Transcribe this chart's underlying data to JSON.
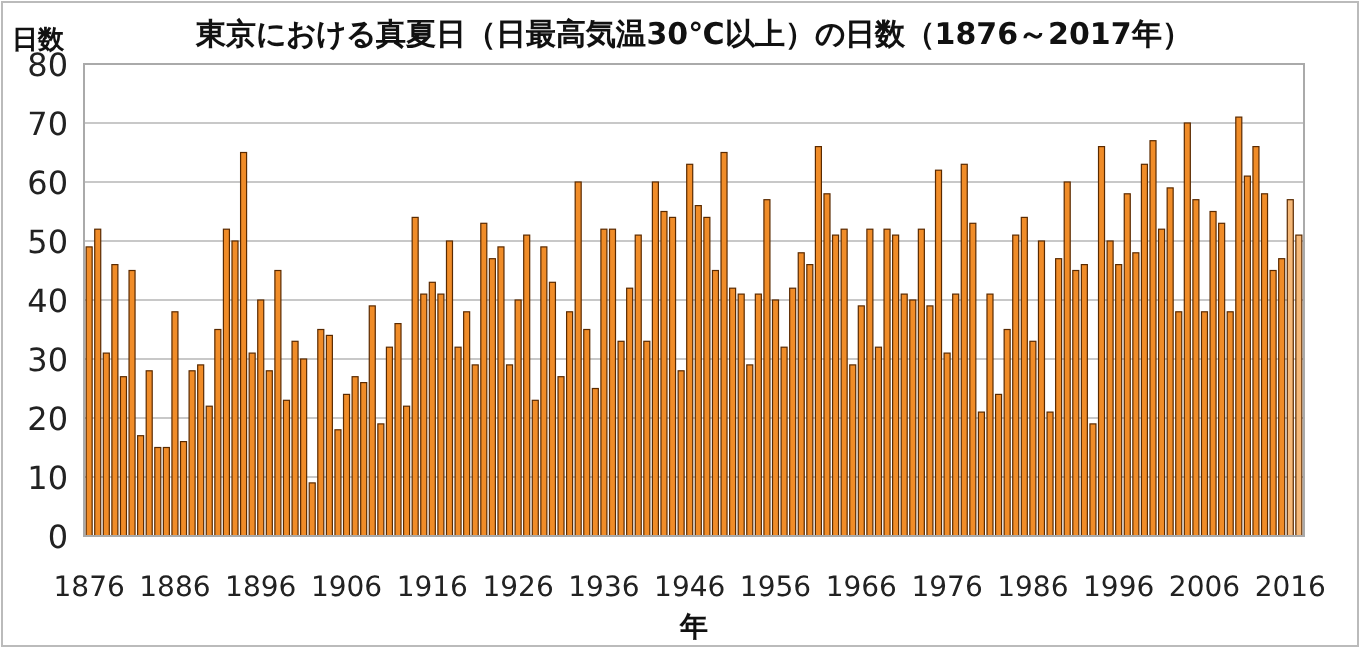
{
  "chart_data": {
    "type": "bar",
    "title": "東京における真夏日（日最高気温30℃以上）の日数（1876～2017年）",
    "xlabel": "年",
    "ylabel": "日数",
    "x": [
      1876,
      1877,
      1878,
      1879,
      1880,
      1881,
      1882,
      1883,
      1884,
      1885,
      1886,
      1887,
      1888,
      1889,
      1890,
      1891,
      1892,
      1893,
      1894,
      1895,
      1896,
      1897,
      1898,
      1899,
      1900,
      1901,
      1902,
      1903,
      1904,
      1905,
      1906,
      1907,
      1908,
      1909,
      1910,
      1911,
      1912,
      1913,
      1914,
      1915,
      1916,
      1917,
      1918,
      1919,
      1920,
      1921,
      1922,
      1923,
      1924,
      1925,
      1926,
      1927,
      1928,
      1929,
      1930,
      1931,
      1932,
      1933,
      1934,
      1935,
      1936,
      1937,
      1938,
      1939,
      1940,
      1941,
      1942,
      1943,
      1944,
      1945,
      1946,
      1947,
      1948,
      1949,
      1950,
      1951,
      1952,
      1953,
      1954,
      1955,
      1956,
      1957,
      1958,
      1959,
      1960,
      1961,
      1962,
      1963,
      1964,
      1965,
      1966,
      1967,
      1968,
      1969,
      1970,
      1971,
      1972,
      1973,
      1974,
      1975,
      1976,
      1977,
      1978,
      1979,
      1980,
      1981,
      1982,
      1983,
      1984,
      1985,
      1986,
      1987,
      1988,
      1989,
      1990,
      1991,
      1992,
      1993,
      1994,
      1995,
      1996,
      1997,
      1998,
      1999,
      2000,
      2001,
      2002,
      2003,
      2004,
      2005,
      2006,
      2007,
      2008,
      2009,
      2010,
      2011,
      2012,
      2013,
      2014,
      2015,
      2016,
      2017
    ],
    "values": [
      49,
      52,
      31,
      46,
      27,
      45,
      17,
      28,
      15,
      15,
      38,
      16,
      28,
      29,
      22,
      35,
      52,
      50,
      65,
      31,
      40,
      28,
      45,
      23,
      33,
      30,
      9,
      35,
      34,
      18,
      24,
      27,
      26,
      39,
      19,
      32,
      36,
      22,
      54,
      41,
      43,
      41,
      50,
      32,
      38,
      29,
      53,
      47,
      49,
      29,
      40,
      51,
      23,
      49,
      43,
      27,
      38,
      60,
      35,
      25,
      52,
      52,
      33,
      42,
      51,
      33,
      60,
      55,
      54,
      28,
      63,
      56,
      54,
      45,
      65,
      42,
      41,
      29,
      41,
      57,
      40,
      32,
      42,
      48,
      46,
      66,
      58,
      51,
      52,
      29,
      39,
      52,
      32,
      52,
      51,
      41,
      40,
      52,
      39,
      62,
      31,
      41,
      63,
      53,
      21,
      41,
      24,
      35,
      51,
      54,
      33,
      50,
      21,
      47,
      60,
      45,
      46,
      19,
      66,
      50,
      46,
      58,
      48,
      63,
      67,
      52,
      59,
      38,
      70,
      57,
      38,
      55,
      53,
      38,
      71,
      61,
      66,
      58,
      45,
      47,
      57,
      51
    ],
    "colors": [
      "#f08c28",
      "#f08c28",
      "#f08c28",
      "#f08c28",
      "#f08c28",
      "#f08c28",
      "#f08c28",
      "#f08c28",
      "#f08c28",
      "#f08c28",
      "#f08c28",
      "#f08c28",
      "#f08c28",
      "#f08c28",
      "#f08c28",
      "#f08c28",
      "#f08c28",
      "#f08c28",
      "#f08c28",
      "#f08c28",
      "#f08c28",
      "#f08c28",
      "#f08c28",
      "#f08c28",
      "#f08c28",
      "#f08c28",
      "#f08c28",
      "#f08c28",
      "#f08c28",
      "#f08c28",
      "#f08c28",
      "#f08c28",
      "#f08c28",
      "#f08c28",
      "#f08c28",
      "#f08c28",
      "#f08c28",
      "#f08c28",
      "#f08c28",
      "#f08c28",
      "#f08c28",
      "#f08c28",
      "#f08c28",
      "#f08c28",
      "#f08c28",
      "#f08c28",
      "#f08c28",
      "#f08c28",
      "#f08c28",
      "#f08c28",
      "#f08c28",
      "#f08c28",
      "#f08c28",
      "#f08c28",
      "#f08c28",
      "#f08c28",
      "#f08c28",
      "#f08c28",
      "#f08c28",
      "#f08c28",
      "#f08c28",
      "#f08c28",
      "#f08c28",
      "#f08c28",
      "#f08c28",
      "#f08c28",
      "#f08c28",
      "#f08c28",
      "#f08c28",
      "#f08c28",
      "#f08c28",
      "#f08c28",
      "#f08c28",
      "#f08c28",
      "#f08c28",
      "#f08c28",
      "#f08c28",
      "#f08c28",
      "#f08c28",
      "#f08c28",
      "#f08c28",
      "#f08c28",
      "#f08c28",
      "#f08c28",
      "#f08c28",
      "#f08c28",
      "#f08c28",
      "#f08c28",
      "#f08c28",
      "#f08c28",
      "#f08c28",
      "#f08c28",
      "#f08c28",
      "#f08c28",
      "#f08c28",
      "#f08c28",
      "#f08c28",
      "#f08c28",
      "#f08c28",
      "#f08c28",
      "#f08c28",
      "#f08c28",
      "#f08c28",
      "#f08c28",
      "#f08c28",
      "#f08c28",
      "#f08c28",
      "#f08c28",
      "#f08c28",
      "#f08c28",
      "#f08c28",
      "#f08c28",
      "#f08c28",
      "#f08c28",
      "#f08c28",
      "#f08c28",
      "#f08c28",
      "#f08c28",
      "#f08c28",
      "#f08c28",
      "#f08c28",
      "#f08c28",
      "#f08c28",
      "#f08c28",
      "#f08c28",
      "#f08c28",
      "#f08c28",
      "#f08c28",
      "#f08c28",
      "#f08c28",
      "#f08c28",
      "#f08c28",
      "#f08c28",
      "#f08c28",
      "#f08c28",
      "#f08c28",
      "#f08c28",
      "#f08c28",
      "#f08c28",
      "#f08c28",
      "#f5b878",
      "#f5b878"
    ],
    "xlim": [
      1875.4,
      2017.6
    ],
    "xticks": [
      1876,
      1886,
      1896,
      1906,
      1916,
      1926,
      1936,
      1946,
      1956,
      1966,
      1976,
      1986,
      1996,
      2006,
      2016
    ],
    "ylim": [
      0,
      80
    ],
    "yticks": [
      0,
      10,
      20,
      30,
      40,
      50,
      60,
      70,
      80
    ],
    "grid": "y"
  }
}
